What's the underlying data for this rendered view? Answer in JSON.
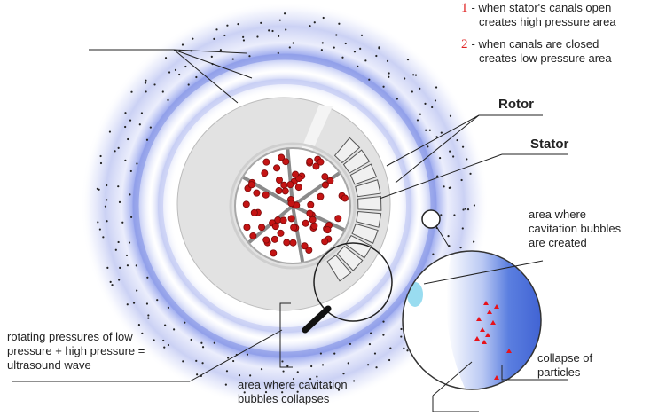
{
  "legend": [
    {
      "number": "1",
      "text_line1": "- when stator's canals open",
      "text_line2": "creates high pressure area"
    },
    {
      "number": "2",
      "text_line1": "- when canals are closed",
      "text_line2": "creates low pressure area"
    }
  ],
  "labels": {
    "rotor": "Rotor",
    "stator": "Stator",
    "bubbles_created_1": "area where",
    "bubbles_created_2": "cavitation bubbles",
    "bubbles_created_3": "are created",
    "collapse_particles_1": "collapse of",
    "collapse_particles_2": "particles",
    "rotating_1": "rotating pressures of low",
    "rotating_2": "pressure + high pressure =",
    "rotating_3": "ultrasound wave",
    "collapses_1": "area where cavitation",
    "collapses_2": "bubbles collapses"
  },
  "colors": {
    "number_red": "#e02020",
    "ring_blue": "#8f9ee8",
    "particle_red": "#c41414",
    "magnifier_blue": "#3d63d6",
    "rotor_gray": "#e2e2e2"
  }
}
